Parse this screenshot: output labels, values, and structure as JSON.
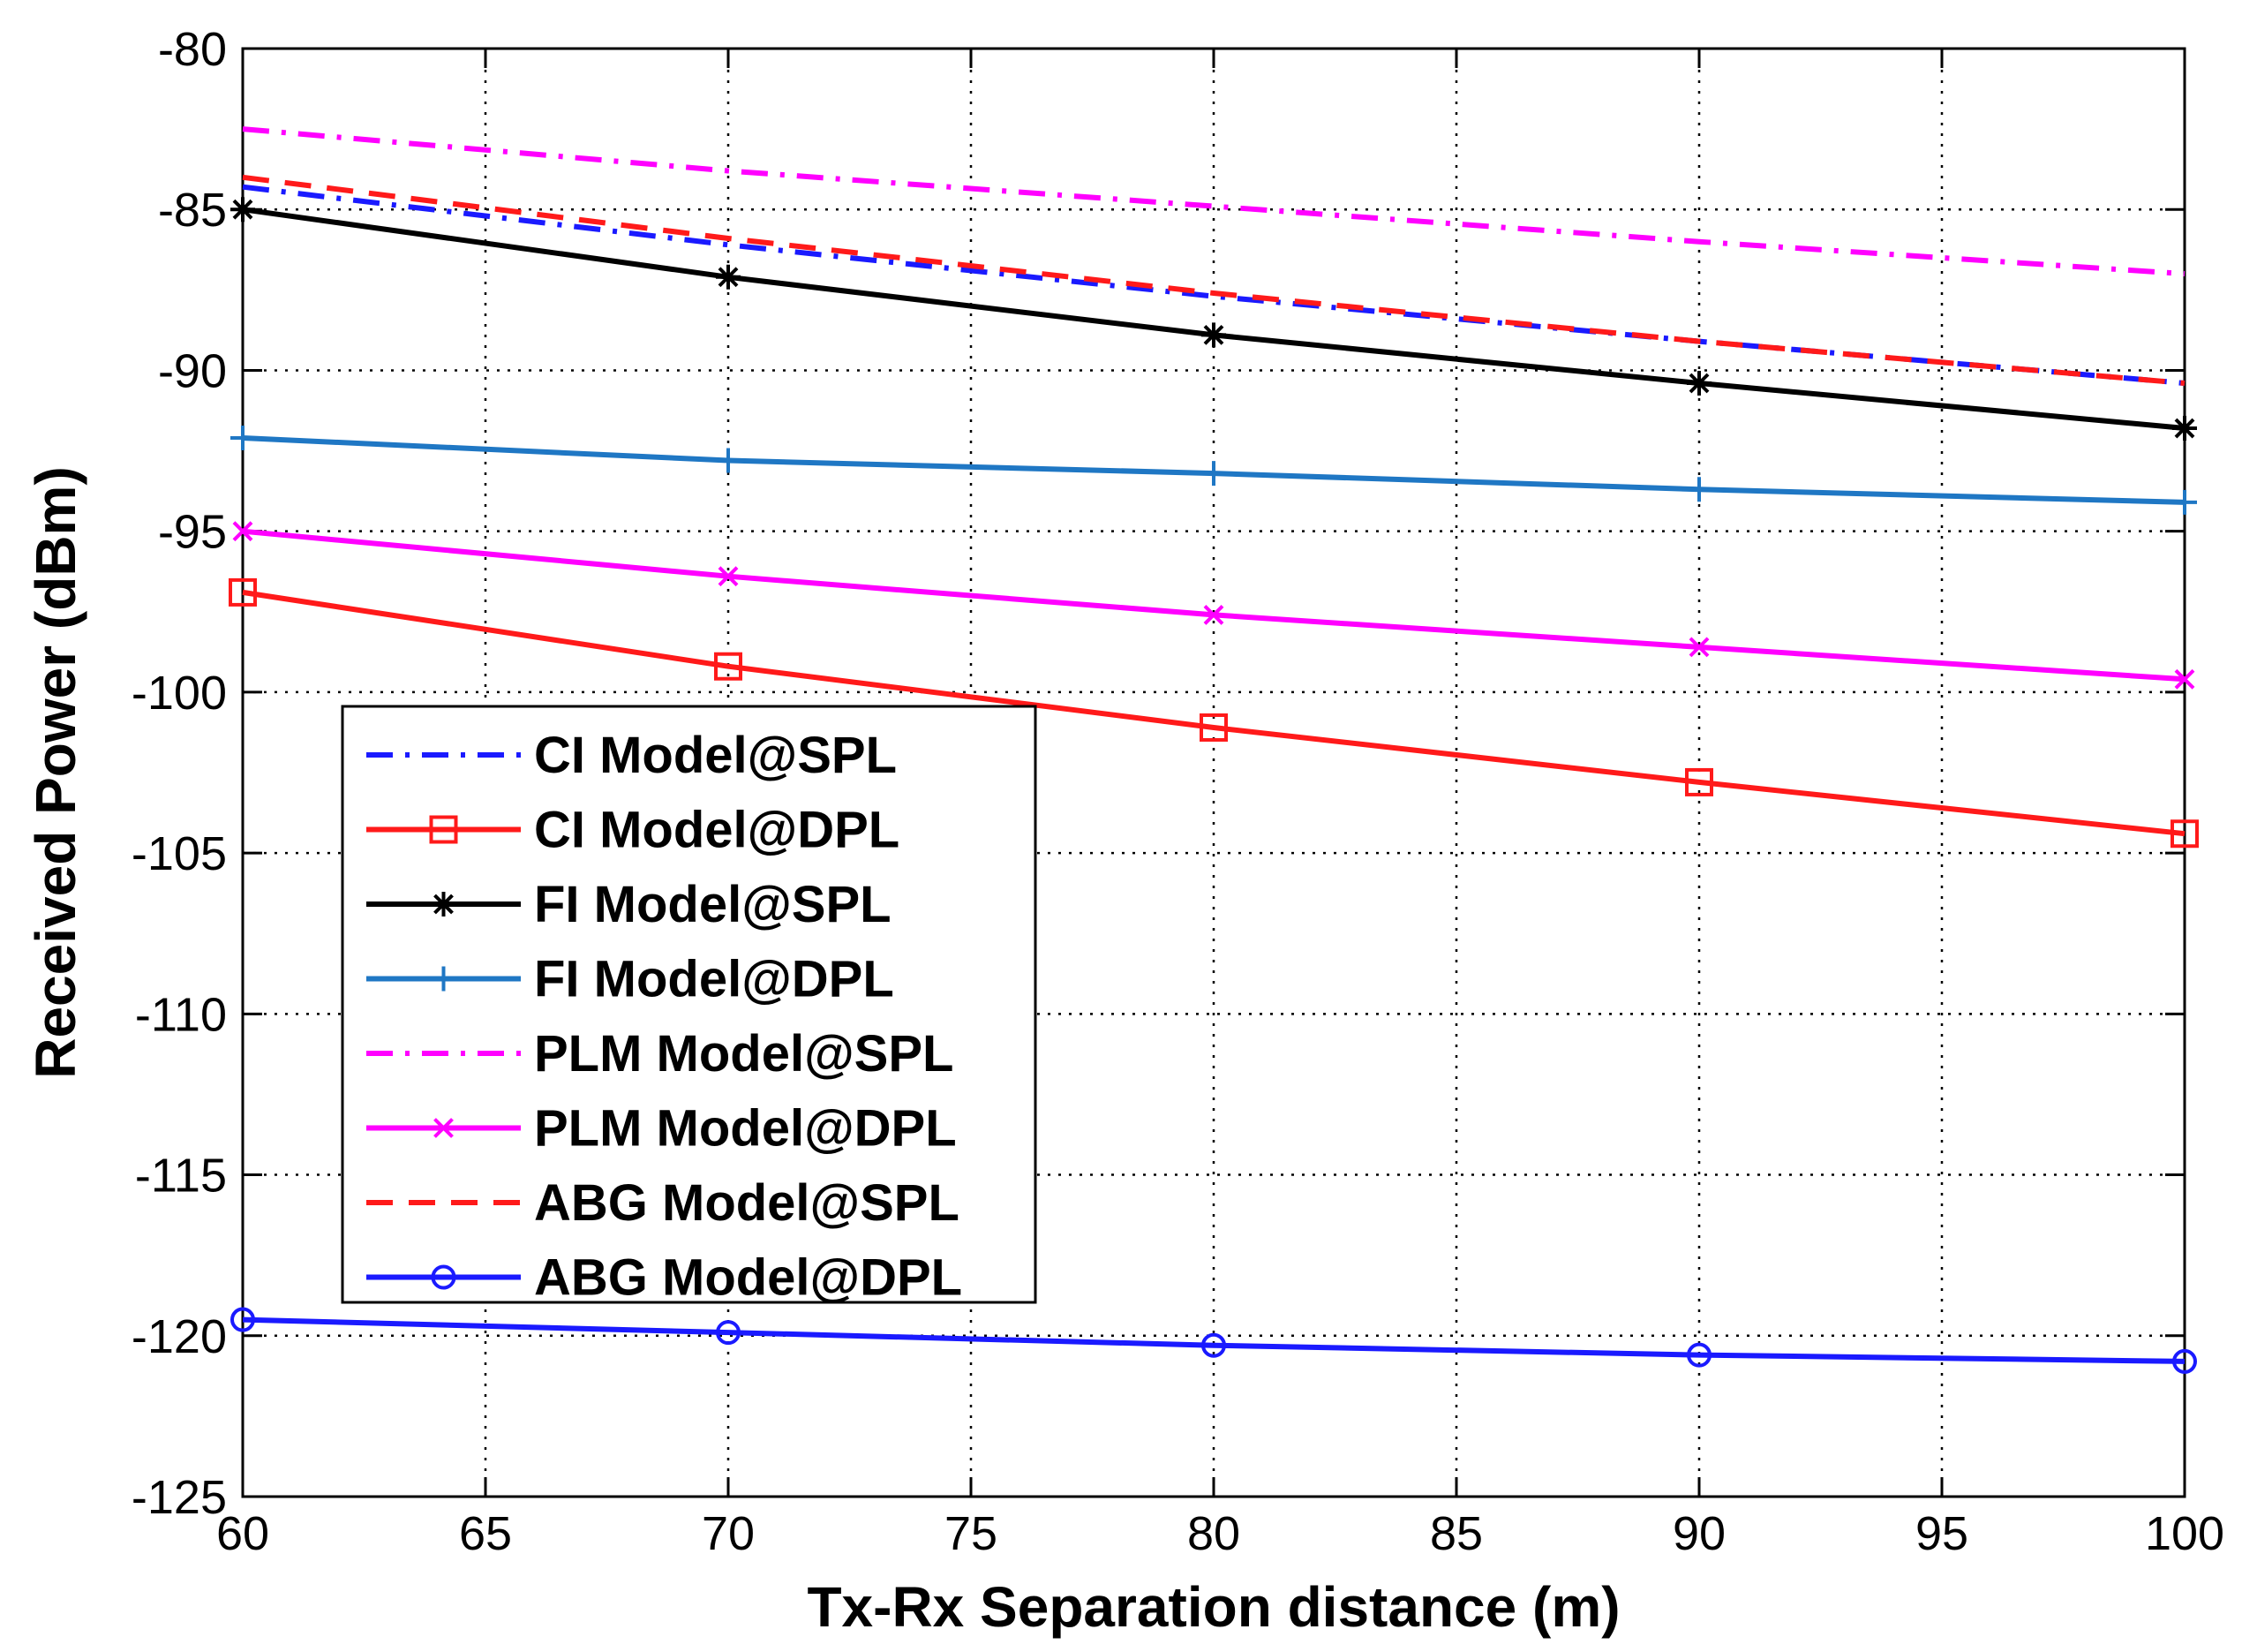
{
  "chart_data": {
    "type": "line",
    "title": "",
    "xlabel": "Tx-Rx Separation distance (m)",
    "ylabel": "Received Power (dBm)",
    "xlim": [
      60,
      100
    ],
    "ylim": [
      -125,
      -80
    ],
    "x_ticks": [
      60,
      65,
      70,
      75,
      80,
      85,
      90,
      95,
      100
    ],
    "y_ticks": [
      -125,
      -120,
      -115,
      -110,
      -105,
      -100,
      -95,
      -90,
      -85,
      -80
    ],
    "grid": true,
    "legend_position": "lower-left",
    "x": [
      60,
      70,
      80,
      90,
      100
    ],
    "series": [
      {
        "name": "CI Model@SPL",
        "color": "#1a1aff",
        "dash": "dashdot",
        "marker": "none",
        "values": [
          -84.3,
          -86.1,
          -87.7,
          -89.1,
          -90.4
        ]
      },
      {
        "name": "CI Model@DPL",
        "color": "#ff1a1a",
        "dash": "solid",
        "marker": "square",
        "values": [
          -96.9,
          -99.2,
          -101.1,
          -102.8,
          -104.4
        ]
      },
      {
        "name": "FI Model@SPL",
        "color": "#000000",
        "dash": "solid",
        "marker": "star",
        "values": [
          -85.0,
          -87.1,
          -88.9,
          -90.4,
          -91.8
        ]
      },
      {
        "name": "FI Model@DPL",
        "color": "#1f77c4",
        "dash": "solid",
        "marker": "plus",
        "values": [
          -92.1,
          -92.8,
          -93.2,
          -93.7,
          -94.1
        ]
      },
      {
        "name": "PLM Model@SPL",
        "color": "#ff00ff",
        "dash": "dashdot",
        "marker": "none",
        "values": [
          -82.5,
          -83.8,
          -84.9,
          -86.0,
          -87.0
        ]
      },
      {
        "name": "PLM Model@DPL",
        "color": "#ff00ff",
        "dash": "solid",
        "marker": "x",
        "values": [
          -95.0,
          -96.4,
          -97.6,
          -98.6,
          -99.6
        ]
      },
      {
        "name": "ABG Model@SPL",
        "color": "#ff1a1a",
        "dash": "dashed",
        "marker": "none",
        "values": [
          -84.0,
          -85.9,
          -87.6,
          -89.1,
          -90.4
        ]
      },
      {
        "name": "ABG Model@DPL",
        "color": "#1a1aff",
        "dash": "solid",
        "marker": "circle",
        "values": [
          -119.5,
          -119.9,
          -120.3,
          -120.6,
          -120.8
        ]
      }
    ]
  }
}
